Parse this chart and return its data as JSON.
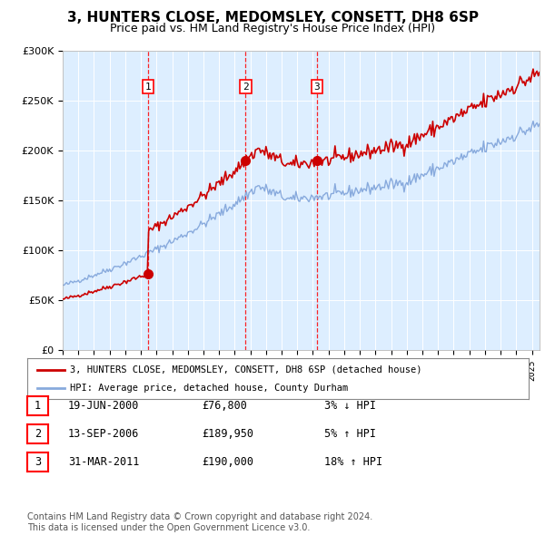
{
  "title": "3, HUNTERS CLOSE, MEDOMSLEY, CONSETT, DH8 6SP",
  "subtitle": "Price paid vs. HM Land Registry's House Price Index (HPI)",
  "ylim": [
    0,
    300000
  ],
  "yticks": [
    0,
    50000,
    100000,
    150000,
    200000,
    250000,
    300000
  ],
  "ytick_labels": [
    "£0",
    "£50K",
    "£100K",
    "£150K",
    "£200K",
    "£250K",
    "£300K"
  ],
  "background_color": "#ddeeff",
  "hpi_color": "#88aadd",
  "price_color": "#cc0000",
  "sale_dates_str": [
    "2000-06-19",
    "2006-09-13",
    "2011-03-31"
  ],
  "sale_prices": [
    76800,
    189950,
    190000
  ],
  "sale_labels": [
    "1",
    "2",
    "3"
  ],
  "legend_label_price": "3, HUNTERS CLOSE, MEDOMSLEY, CONSETT, DH8 6SP (detached house)",
  "legend_label_hpi": "HPI: Average price, detached house, County Durham",
  "table_rows": [
    {
      "label": "1",
      "date": "19-JUN-2000",
      "price": "£76,800",
      "hpi": "3% ↓ HPI"
    },
    {
      "label": "2",
      "date": "13-SEP-2006",
      "price": "£189,950",
      "hpi": "5% ↑ HPI"
    },
    {
      "label": "3",
      "date": "31-MAR-2011",
      "price": "£190,000",
      "hpi": "18% ↑ HPI"
    }
  ],
  "footer": "Contains HM Land Registry data © Crown copyright and database right 2024.\nThis data is licensed under the Open Government Licence v3.0.",
  "x_start_year": 1995,
  "x_end_year": 2025
}
